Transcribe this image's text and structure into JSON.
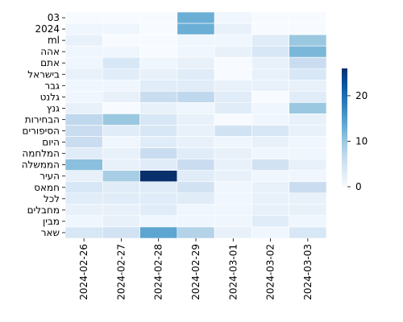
{
  "chart_data": {
    "type": "heatmap",
    "title": "",
    "xlabel": "",
    "ylabel": "",
    "x_categories": [
      "2024-02-26",
      "2024-02-27",
      "2024-02-28",
      "2024-02-29",
      "2024-03-01",
      "2024-03-02",
      "2024-03-03"
    ],
    "y_categories": [
      "03",
      "2024",
      "ml",
      "אהה",
      "אתם",
      "בישראל",
      "גבר",
      "גלנט",
      "גנץ",
      "הבחירות",
      "הסיפורים",
      "היום",
      "המלחמה",
      "הממשלה",
      "העיר",
      "חמאס",
      "לכל",
      "מחבלים",
      "מבין",
      "שאר"
    ],
    "values": [
      [
        0,
        0,
        0,
        13,
        1,
        0,
        0
      ],
      [
        1,
        1,
        0,
        13,
        2,
        0,
        0
      ],
      [
        2,
        0,
        0,
        1,
        1,
        3,
        10
      ],
      [
        1,
        1,
        0,
        1,
        2,
        4,
        12
      ],
      [
        1,
        4,
        1,
        2,
        0,
        2,
        6
      ],
      [
        2,
        3,
        2,
        3,
        0,
        2,
        4
      ],
      [
        1,
        1,
        3,
        3,
        2,
        2,
        2
      ],
      [
        1,
        2,
        6,
        7,
        3,
        0,
        3
      ],
      [
        2,
        0,
        2,
        1,
        3,
        1,
        10
      ],
      [
        7,
        10,
        4,
        2,
        0,
        1,
        2
      ],
      [
        6,
        3,
        4,
        2,
        5,
        4,
        2
      ],
      [
        6,
        1,
        3,
        2,
        1,
        2,
        1
      ],
      [
        3,
        2,
        6,
        3,
        2,
        1,
        1
      ],
      [
        11,
        2,
        3,
        6,
        2,
        5,
        2
      ],
      [
        2,
        9,
        26,
        3,
        2,
        1,
        1
      ],
      [
        4,
        3,
        3,
        5,
        1,
        2,
        6
      ],
      [
        3,
        3,
        3,
        3,
        1,
        2,
        2
      ],
      [
        2,
        2,
        3,
        1,
        1,
        2,
        2
      ],
      [
        1,
        2,
        1,
        1,
        1,
        3,
        1
      ],
      [
        4,
        5,
        14,
        8,
        2,
        1,
        4
      ]
    ],
    "colorbar": {
      "min": 0,
      "max": 26,
      "ticks": [
        0,
        10,
        20
      ]
    },
    "colormap": {
      "low": "#f7fbff",
      "high": "#08306b",
      "name": "Blues"
    },
    "grid": true
  }
}
